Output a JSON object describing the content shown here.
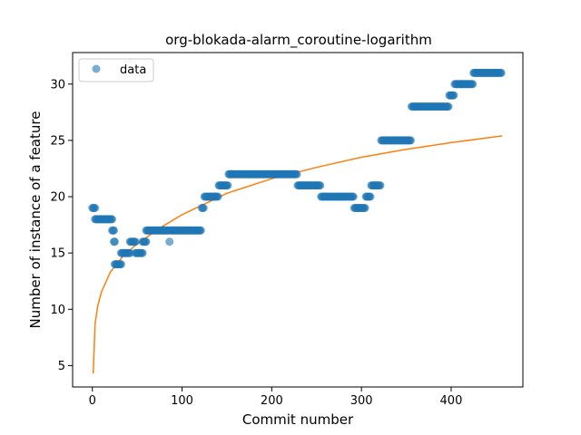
{
  "chart_data": {
    "type": "scatter",
    "title": "org-blokada-alarm_coroutine-logarithm",
    "xlabel": "Commit number",
    "ylabel": "Number of instance of a feature",
    "xlim": [
      -22,
      480
    ],
    "ylim": [
      3.1,
      32.8
    ],
    "xticks": [
      0,
      100,
      200,
      300,
      400
    ],
    "yticks": [
      5,
      10,
      15,
      20,
      25,
      30
    ],
    "grid": false,
    "legend_position": "top-left",
    "colors": {
      "scatter": "#1f77b4",
      "fit": "#ff7f0e"
    },
    "legend": [
      {
        "name": "data",
        "marker": "circle"
      }
    ],
    "segments": [
      {
        "x0": 0,
        "x1": 3,
        "y": 19
      },
      {
        "x0": 3,
        "x1": 22,
        "y": 18
      },
      {
        "x0": 22,
        "x1": 24,
        "y": 17
      },
      {
        "x0": 24,
        "x1": 25,
        "y": 16
      },
      {
        "x0": 25,
        "x1": 32,
        "y": 14
      },
      {
        "x0": 32,
        "x1": 42,
        "y": 15
      },
      {
        "x0": 42,
        "x1": 48,
        "y": 16
      },
      {
        "x0": 48,
        "x1": 56,
        "y": 15
      },
      {
        "x0": 56,
        "x1": 60,
        "y": 16
      },
      {
        "x0": 60,
        "x1": 85,
        "y": 17
      },
      {
        "x0": 86,
        "x1": 86,
        "y": 16
      },
      {
        "x0": 87,
        "x1": 121,
        "y": 17
      },
      {
        "x0": 122,
        "x1": 124,
        "y": 19
      },
      {
        "x0": 125,
        "x1": 140,
        "y": 20
      },
      {
        "x0": 141,
        "x1": 151,
        "y": 21
      },
      {
        "x0": 152,
        "x1": 228,
        "y": 22
      },
      {
        "x0": 229,
        "x1": 254,
        "y": 21
      },
      {
        "x0": 255,
        "x1": 291,
        "y": 20
      },
      {
        "x0": 292,
        "x1": 304,
        "y": 19
      },
      {
        "x0": 305,
        "x1": 310,
        "y": 20
      },
      {
        "x0": 311,
        "x1": 321,
        "y": 21
      },
      {
        "x0": 322,
        "x1": 355,
        "y": 25
      },
      {
        "x0": 356,
        "x1": 397,
        "y": 28
      },
      {
        "x0": 398,
        "x1": 403,
        "y": 29
      },
      {
        "x0": 404,
        "x1": 424,
        "y": 30
      },
      {
        "x0": 425,
        "x1": 456,
        "y": 31
      }
    ],
    "fit_curve": {
      "x": [
        1,
        3,
        6,
        10,
        20,
        35,
        50,
        75,
        100,
        150,
        200,
        250,
        300,
        350,
        400,
        457
      ],
      "y": [
        4.3,
        8.7,
        10.3,
        11.5,
        13.3,
        14.8,
        15.8,
        17.2,
        18.4,
        20.3,
        21.6,
        22.6,
        23.5,
        24.2,
        24.8,
        25.4
      ]
    }
  }
}
